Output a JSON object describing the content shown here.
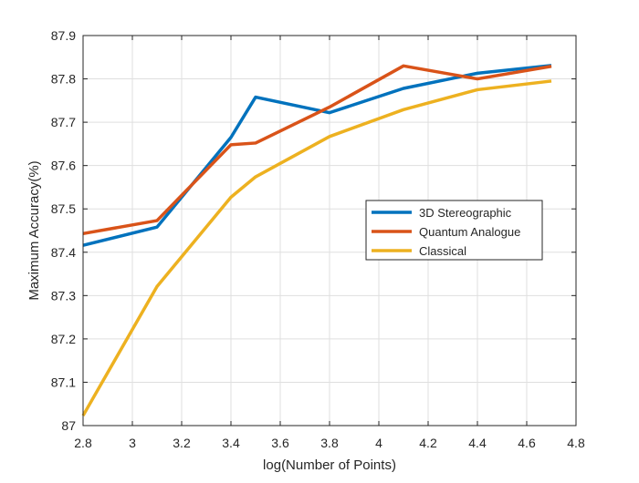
{
  "chart_data": {
    "type": "line",
    "title": "",
    "xlabel": "log(Number of Points)",
    "ylabel": "Maximum Accuracy(%)",
    "xlim": [
      2.8,
      4.8
    ],
    "ylim": [
      87.0,
      87.9
    ],
    "xticks": [
      2.8,
      3,
      3.2,
      3.4,
      3.6,
      3.8,
      4,
      4.2,
      4.4,
      4.6,
      4.8
    ],
    "xtick_labels": [
      "2.8",
      "3",
      "3.2",
      "3.4",
      "3.6",
      "3.8",
      "4",
      "4.2",
      "4.4",
      "4.6",
      "4.8"
    ],
    "yticks": [
      87.0,
      87.1,
      87.2,
      87.3,
      87.4,
      87.5,
      87.6,
      87.7,
      87.8,
      87.9
    ],
    "ytick_labels": [
      "87",
      "87.1",
      "87.2",
      "87.3",
      "87.4",
      "87.5",
      "87.6",
      "87.7",
      "87.8",
      "87.9"
    ],
    "grid": true,
    "legend_position": "center-right",
    "series": [
      {
        "name": "3D Stereographic",
        "color": "#0072BD",
        "x": [
          2.8,
          3.1,
          3.4,
          3.5,
          3.8,
          4.1,
          4.4,
          4.7
        ],
        "y": [
          87.416,
          87.458,
          87.665,
          87.758,
          87.722,
          87.778,
          87.813,
          87.831
        ]
      },
      {
        "name": "Quantum Analogue",
        "color": "#D95319",
        "x": [
          2.8,
          3.1,
          3.4,
          3.5,
          3.8,
          4.1,
          4.4,
          4.7
        ],
        "y": [
          87.443,
          87.473,
          87.648,
          87.652,
          87.735,
          87.83,
          87.8,
          87.829
        ]
      },
      {
        "name": "Classical",
        "color": "#EDB120",
        "x": [
          2.8,
          3.1,
          3.4,
          3.5,
          3.8,
          4.1,
          4.4,
          4.7
        ],
        "y": [
          87.023,
          87.321,
          87.527,
          87.574,
          87.667,
          87.729,
          87.775,
          87.795
        ]
      }
    ]
  }
}
